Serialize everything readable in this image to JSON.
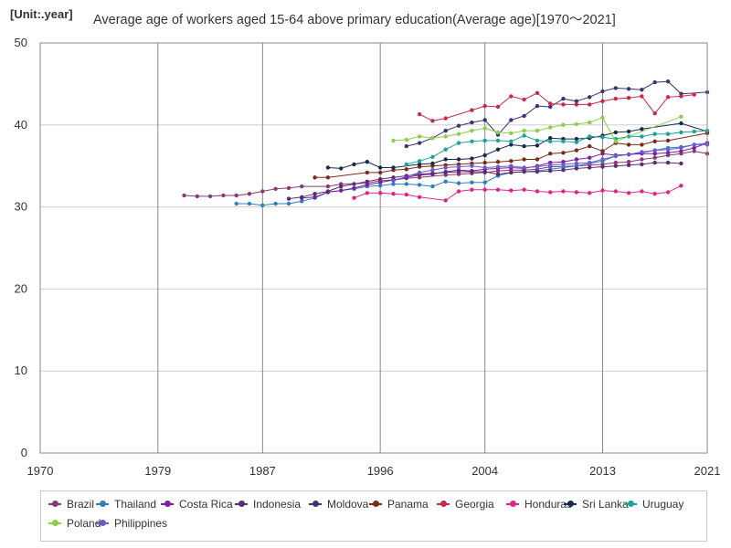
{
  "unit_label": "[Unit:.year]",
  "chart_data": {
    "type": "line",
    "title": "Average age of workers aged 15-64 above primary education(Average age)[1970～2021]",
    "xlabel": "",
    "ylabel": "",
    "xlim": [
      1970,
      2021
    ],
    "ylim": [
      0,
      50
    ],
    "x_ticks": [
      1970,
      1979,
      1987,
      1996,
      2004,
      2013,
      2021
    ],
    "y_ticks": [
      0,
      10,
      20,
      30,
      40,
      50
    ],
    "grid": true,
    "legend_position": "bottom",
    "series": [
      {
        "name": "Brazil",
        "color": "#8b3a6e",
        "x": [
          1981,
          1982,
          1983,
          1984,
          1985,
          1986,
          1987,
          1988,
          1989,
          1990,
          1992,
          1993,
          1995,
          1996,
          1997,
          1998,
          1999,
          2001,
          2002,
          2003,
          2004,
          2005,
          2006,
          2007,
          2008,
          2009,
          2011,
          2012,
          2013,
          2014,
          2015,
          2016,
          2017,
          2018,
          2019,
          2020,
          2021
        ],
        "y": [
          31.4,
          31.3,
          31.3,
          31.4,
          31.4,
          31.6,
          31.9,
          32.2,
          32.3,
          32.5,
          32.5,
          32.8,
          32.9,
          33.2,
          33.3,
          33.5,
          33.6,
          33.9,
          34.0,
          34.1,
          34.2,
          34.4,
          34.5,
          34.5,
          34.6,
          34.9,
          35.0,
          35.1,
          35.2,
          35.4,
          35.5,
          35.8,
          36.0,
          36.3,
          36.5,
          36.8,
          36.5
        ]
      },
      {
        "name": "Thailand",
        "color": "#2f7fc1",
        "x": [
          1985,
          1986,
          1987,
          1988,
          1989,
          1990,
          1991,
          1992,
          1993,
          1994,
          1995,
          1996,
          1997,
          1998,
          1999,
          2000,
          2001,
          2002,
          2003,
          2004,
          2005,
          2006,
          2007,
          2008,
          2009,
          2010,
          2011,
          2012,
          2013,
          2014,
          2015,
          2016,
          2017,
          2018,
          2019,
          2020,
          2021
        ],
        "y": [
          30.4,
          30.4,
          30.2,
          30.4,
          30.4,
          30.7,
          31.1,
          31.8,
          32.0,
          32.2,
          32.5,
          32.6,
          32.8,
          32.8,
          32.7,
          32.5,
          33.1,
          32.9,
          33.0,
          33.0,
          33.8,
          34.2,
          34.3,
          34.4,
          34.6,
          34.8,
          35.0,
          35.3,
          35.6,
          36.2,
          36.4,
          36.6,
          36.9,
          37.2,
          37.3,
          37.6,
          37.8
        ]
      },
      {
        "name": "Costa Rica",
        "color": "#7a1fa2",
        "x": [
          1990,
          1991,
          1992,
          1993,
          1994,
          1995,
          1996,
          1997,
          1998,
          1999,
          2000,
          2001,
          2002,
          2003,
          2004,
          2005,
          2006,
          2007,
          2008,
          2009,
          2010,
          2011,
          2012,
          2013,
          2014,
          2015,
          2016,
          2017,
          2018,
          2019,
          2020,
          2021
        ],
        "y": [
          31.1,
          31.2,
          31.8,
          32.0,
          32.3,
          32.7,
          33.0,
          33.3,
          33.6,
          33.9,
          34.0,
          34.3,
          34.5,
          34.4,
          34.6,
          34.7,
          34.8,
          34.7,
          35.0,
          35.4,
          35.5,
          35.8,
          36.0,
          36.5,
          36.3,
          36.4,
          36.5,
          36.5,
          36.6,
          36.8,
          37.2,
          37.8
        ]
      },
      {
        "name": "Indonesia",
        "color": "#5b2c6f",
        "x": [
          1989,
          1990,
          1991,
          1992,
          1993,
          1994,
          1995,
          1996,
          1997,
          1998,
          1999,
          2000,
          2001,
          2002,
          2003,
          2004,
          2005,
          2006,
          2007,
          2008,
          2009,
          2010,
          2011,
          2012,
          2013,
          2014,
          2015,
          2016,
          2017,
          2018,
          2019
        ],
        "y": [
          31.0,
          31.2,
          31.6,
          31.9,
          32.5,
          32.8,
          33.1,
          33.4,
          33.6,
          33.8,
          34.0,
          34.1,
          34.2,
          34.3,
          34.3,
          34.3,
          34.0,
          34.2,
          34.3,
          34.3,
          34.4,
          34.5,
          34.7,
          34.8,
          34.9,
          35.0,
          35.1,
          35.2,
          35.4,
          35.4,
          35.3
        ]
      },
      {
        "name": "Moldova",
        "color": "#3b3578",
        "x": [
          1998,
          1999,
          2000,
          2001,
          2002,
          2003,
          2004,
          2005,
          2006,
          2007,
          2008,
          2009,
          2010,
          2011,
          2012,
          2013,
          2014,
          2015,
          2016,
          2017,
          2018,
          2019,
          2021
        ],
        "y": [
          37.4,
          37.8,
          38.4,
          39.3,
          39.9,
          40.3,
          40.6,
          38.8,
          40.6,
          41.1,
          42.3,
          42.2,
          43.2,
          42.9,
          43.4,
          44.1,
          44.5,
          44.4,
          44.3,
          45.2,
          45.3,
          43.8,
          44.0
        ]
      },
      {
        "name": "Panama",
        "color": "#7b2b1a",
        "x": [
          1991,
          1992,
          1995,
          1996,
          1997,
          1998,
          1999,
          2000,
          2001,
          2002,
          2003,
          2004,
          2005,
          2006,
          2007,
          2008,
          2009,
          2010,
          2011,
          2012,
          2013,
          2014,
          2015,
          2016,
          2017,
          2018,
          2021
        ],
        "y": [
          33.6,
          33.6,
          34.2,
          34.2,
          34.5,
          34.6,
          34.9,
          35.0,
          35.1,
          35.2,
          35.3,
          35.4,
          35.5,
          35.6,
          35.8,
          35.8,
          36.5,
          36.6,
          36.9,
          37.4,
          36.8,
          37.8,
          37.6,
          37.6,
          38.0,
          38.1,
          39.0
        ]
      },
      {
        "name": "Georgia",
        "color": "#c8284a",
        "x": [
          1999,
          2000,
          2001,
          2003,
          2004,
          2005,
          2006,
          2007,
          2008,
          2009,
          2010,
          2011,
          2012,
          2013,
          2014,
          2015,
          2016,
          2017,
          2018,
          2019,
          2020
        ],
        "y": [
          41.3,
          40.5,
          40.8,
          41.8,
          42.3,
          42.2,
          43.5,
          43.1,
          43.9,
          42.6,
          42.5,
          42.5,
          42.5,
          42.9,
          43.2,
          43.3,
          43.5,
          41.4,
          43.4,
          43.5,
          43.7
        ]
      },
      {
        "name": "Honduras",
        "color": "#e0258a",
        "x": [
          1994,
          1995,
          1996,
          1997,
          1998,
          1999,
          2001,
          2002,
          2003,
          2004,
          2005,
          2006,
          2007,
          2008,
          2009,
          2010,
          2011,
          2012,
          2013,
          2014,
          2015,
          2016,
          2017,
          2018,
          2019
        ],
        "y": [
          31.1,
          31.7,
          31.7,
          31.6,
          31.5,
          31.2,
          30.8,
          31.9,
          32.1,
          32.1,
          32.1,
          32.0,
          32.1,
          31.9,
          31.8,
          31.9,
          31.8,
          31.7,
          32.0,
          31.9,
          31.7,
          31.9,
          31.6,
          31.8,
          32.6
        ]
      },
      {
        "name": "Sri Lanka",
        "color": "#1a2a4a",
        "x": [
          1992,
          1993,
          1994,
          1995,
          1996,
          1997,
          1999,
          2000,
          2001,
          2002,
          2003,
          2004,
          2005,
          2006,
          2007,
          2008,
          2009,
          2010,
          2011,
          2012,
          2013,
          2014,
          2015,
          2016,
          2019,
          2021
        ],
        "y": [
          34.8,
          34.7,
          35.2,
          35.5,
          34.8,
          34.8,
          35.2,
          35.3,
          35.8,
          35.8,
          35.9,
          36.3,
          37.0,
          37.6,
          37.4,
          37.5,
          38.4,
          38.3,
          38.3,
          38.4,
          38.7,
          39.1,
          39.2,
          39.5,
          40.2,
          39.2
        ]
      },
      {
        "name": "Uruguay",
        "color": "#1aa39a",
        "x": [
          1998,
          1999,
          2000,
          2001,
          2002,
          2003,
          2004,
          2005,
          2006,
          2007,
          2008,
          2009,
          2010,
          2011,
          2012,
          2013,
          2014,
          2015,
          2016,
          2017,
          2018,
          2019,
          2020,
          2021
        ],
        "y": [
          35.2,
          35.6,
          36.1,
          37.0,
          37.8,
          38.0,
          38.1,
          38.1,
          38.0,
          38.7,
          38.1,
          38.0,
          38.0,
          37.9,
          38.6,
          38.5,
          38.3,
          38.6,
          38.6,
          38.9,
          38.9,
          39.1,
          39.2,
          39.3
        ]
      },
      {
        "name": "Poland",
        "color": "#8ccf4a",
        "x": [
          1997,
          1998,
          1999,
          2000,
          2001,
          2002,
          2003,
          2004,
          2005,
          2006,
          2007,
          2008,
          2009,
          2010,
          2011,
          2012,
          2013,
          2014,
          2019
        ],
        "y": [
          38.1,
          38.2,
          38.6,
          38.4,
          38.6,
          38.9,
          39.3,
          39.6,
          39.1,
          39.0,
          39.3,
          39.3,
          39.7,
          40.0,
          40.1,
          40.3,
          40.9,
          38.0,
          41.0
        ]
      },
      {
        "name": "Philippines",
        "color": "#6a5acd",
        "x": [
          1997,
          1999,
          2000,
          2001,
          2002,
          2003,
          2004,
          2005,
          2006,
          2007,
          2008,
          2009,
          2010,
          2011,
          2012,
          2013,
          2014,
          2015,
          2016,
          2017,
          2018,
          2019,
          2020,
          2021
        ],
        "y": [
          33.2,
          34.2,
          34.5,
          34.8,
          34.9,
          35.0,
          34.8,
          34.9,
          35.0,
          34.8,
          34.9,
          35.1,
          35.2,
          35.3,
          35.4,
          35.8,
          36.2,
          36.4,
          36.7,
          36.9,
          37.0,
          37.2,
          37.6,
          37.6
        ]
      }
    ]
  }
}
